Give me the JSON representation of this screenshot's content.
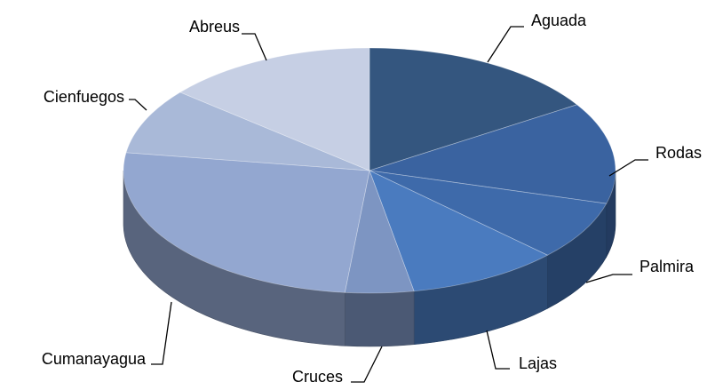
{
  "chart_data": {
    "type": "pie3d",
    "categories": [
      "Aguada",
      "Rodas",
      "Palmira",
      "Lajas",
      "Cruces",
      "Cumanayagua",
      "Cienfuegos",
      "Abreus"
    ],
    "values": [
      16,
      13.4,
      7.8,
      10,
      4.5,
      25.8,
      8.7,
      14
    ],
    "colors": [
      "#34567f",
      "#3a63a0",
      "#3e6aaa",
      "#4a7bbf",
      "#7d95c2",
      "#93a7d0",
      "#a9b9d8",
      "#c6cfe4"
    ]
  }
}
